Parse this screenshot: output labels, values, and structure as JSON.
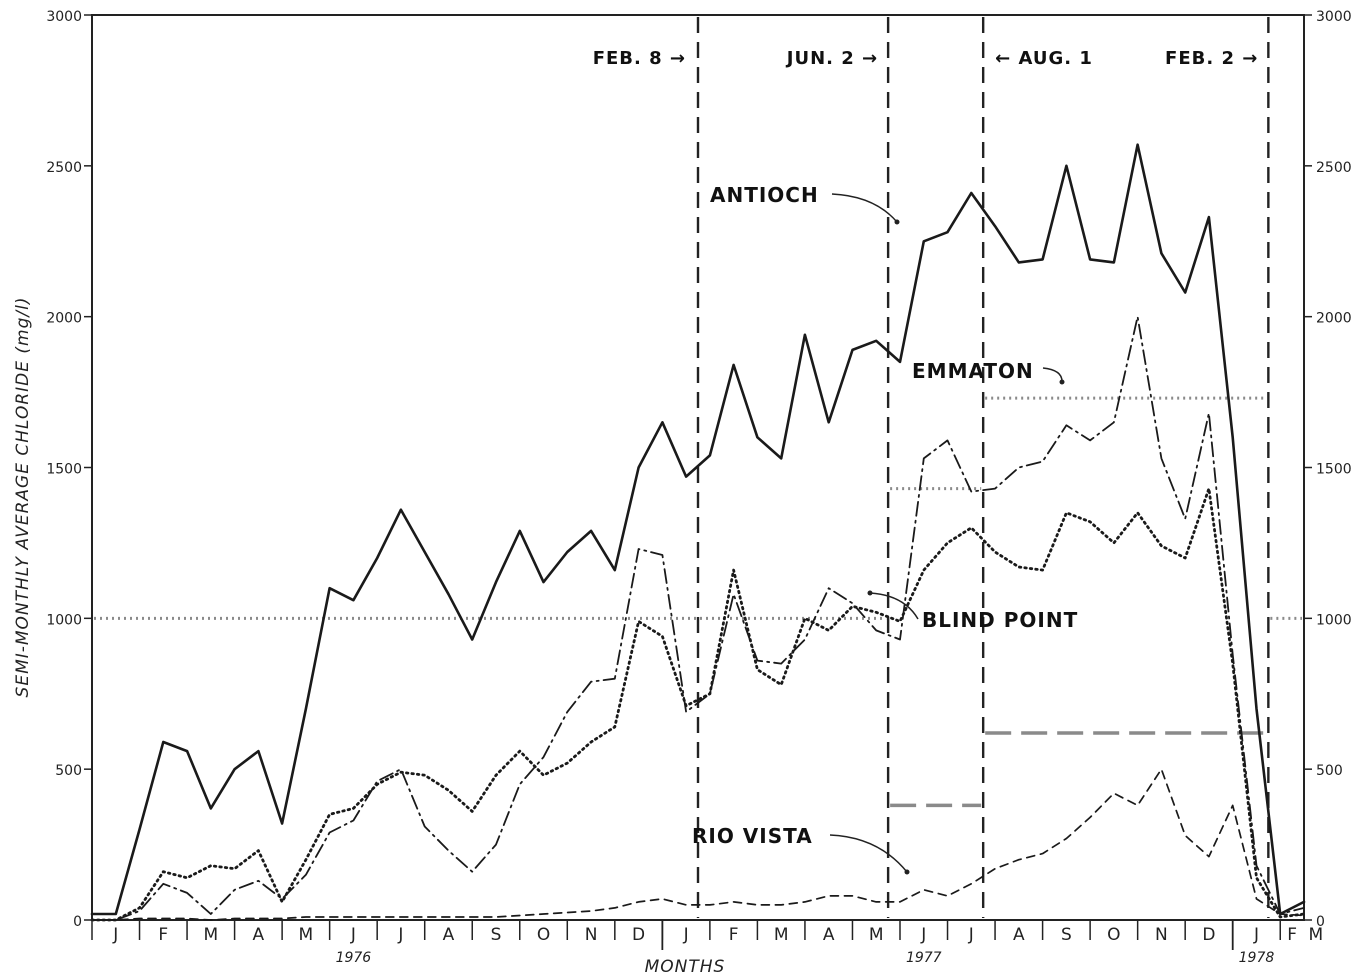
{
  "chart_data": {
    "type": "line",
    "title": "",
    "xlabel": "MONTHS",
    "ylabel": "SEMI-MONTHLY AVERAGE CHLORIDE (mg/l)",
    "ylim": [
      0,
      3000
    ],
    "yticks": [
      0,
      500,
      1000,
      1500,
      2000,
      2500,
      3000
    ],
    "x_units": "half-month periods starting January 1976",
    "xlim": [
      0,
      51
    ],
    "month_labels": [
      "J",
      "F",
      "M",
      "A",
      "M",
      "J",
      "J",
      "A",
      "S",
      "O",
      "N",
      "D",
      "J",
      "F",
      "M",
      "A",
      "M",
      "J",
      "J",
      "A",
      "S",
      "O",
      "N",
      "D",
      "J",
      "F",
      "M"
    ],
    "year_labels": [
      {
        "year": "1976",
        "at_month_index": 5.5
      },
      {
        "year": "1977",
        "at_month_index": 17.5
      },
      {
        "year": "1978",
        "at_month_index": 24.5
      }
    ],
    "grid": false,
    "legend": "none (series labeled directly)",
    "events": [
      {
        "label": "FEB. 8",
        "x": 25.5,
        "arrow": "right"
      },
      {
        "label": "JUN. 2",
        "x": 33.5,
        "arrow": "right"
      },
      {
        "label": "AUG. 1",
        "x": 37.5,
        "arrow": "left"
      },
      {
        "label": "FEB. 2",
        "x": 49.5,
        "arrow": "right"
      }
    ],
    "series": [
      {
        "name": "ANTIOCH",
        "style": "solid",
        "x": [
          0,
          1,
          2,
          3,
          4,
          5,
          6,
          7,
          8,
          9,
          10,
          11,
          12,
          13,
          14,
          15,
          16,
          17,
          18,
          19,
          20,
          21,
          22,
          23,
          24,
          25,
          26,
          27,
          28,
          29,
          30,
          31,
          32,
          33,
          34,
          35,
          36,
          37,
          38,
          39,
          40,
          41,
          42,
          43,
          44,
          45,
          46,
          47,
          48,
          49,
          50,
          51
        ],
        "values": [
          20,
          20,
          300,
          590,
          560,
          370,
          500,
          560,
          320,
          700,
          1100,
          1060,
          1200,
          1360,
          1220,
          1080,
          930,
          1120,
          1290,
          1120,
          1220,
          1290,
          1160,
          1500,
          1650,
          1470,
          1540,
          1840,
          1600,
          1530,
          1940,
          1650,
          1890,
          1920,
          1850,
          2250,
          2280,
          2410,
          2300,
          2180,
          2190,
          2500,
          2190,
          2180,
          2570,
          2210,
          2080,
          2330,
          1600,
          700,
          20,
          60
        ]
      },
      {
        "name": "EMMATON",
        "style": "dash-dot",
        "x": [
          0,
          1,
          2,
          3,
          4,
          5,
          6,
          7,
          8,
          9,
          10,
          11,
          12,
          13,
          14,
          15,
          16,
          17,
          18,
          19,
          20,
          21,
          22,
          23,
          24,
          25,
          26,
          27,
          28,
          29,
          30,
          31,
          32,
          33,
          34,
          35,
          36,
          37,
          38,
          39,
          40,
          41,
          42,
          43,
          44,
          45,
          46,
          47,
          48,
          49,
          50,
          51
        ],
        "values": [
          0,
          0,
          30,
          120,
          90,
          20,
          100,
          130,
          70,
          150,
          290,
          330,
          460,
          500,
          310,
          230,
          160,
          250,
          450,
          540,
          690,
          790,
          800,
          1230,
          1210,
          690,
          750,
          1080,
          860,
          850,
          930,
          1100,
          1050,
          960,
          930,
          1530,
          1590,
          1420,
          1430,
          1500,
          1520,
          1640,
          1590,
          1650,
          2000,
          1530,
          1330,
          1680,
          880,
          180,
          20,
          40
        ]
      },
      {
        "name": "BLIND POINT",
        "style": "dotted",
        "x": [
          0,
          1,
          2,
          3,
          4,
          5,
          6,
          7,
          8,
          9,
          10,
          11,
          12,
          13,
          14,
          15,
          16,
          17,
          18,
          19,
          20,
          21,
          22,
          23,
          24,
          25,
          26,
          27,
          28,
          29,
          30,
          31,
          32,
          33,
          34,
          35,
          36,
          37,
          38,
          39,
          40,
          41,
          42,
          43,
          44,
          45,
          46,
          47,
          48,
          49,
          50,
          51
        ],
        "values": [
          0,
          0,
          40,
          160,
          140,
          180,
          170,
          230,
          60,
          200,
          350,
          370,
          450,
          490,
          480,
          430,
          360,
          480,
          560,
          480,
          520,
          590,
          640,
          990,
          940,
          710,
          750,
          1160,
          830,
          780,
          1000,
          960,
          1040,
          1020,
          990,
          1160,
          1250,
          1300,
          1220,
          1170,
          1160,
          1350,
          1320,
          1250,
          1350,
          1240,
          1200,
          1430,
          850,
          140,
          10,
          20
        ]
      },
      {
        "name": "RIO VISTA",
        "style": "dashed",
        "x": [
          0,
          1,
          2,
          3,
          4,
          5,
          6,
          7,
          8,
          9,
          10,
          11,
          12,
          13,
          14,
          15,
          16,
          17,
          18,
          19,
          20,
          21,
          22,
          23,
          24,
          25,
          26,
          27,
          28,
          29,
          30,
          31,
          32,
          33,
          34,
          35,
          36,
          37,
          38,
          39,
          40,
          41,
          42,
          43,
          44,
          45,
          46,
          47,
          48,
          49,
          50,
          51
        ],
        "values": [
          0,
          0,
          5,
          5,
          5,
          0,
          5,
          5,
          5,
          10,
          10,
          10,
          10,
          10,
          10,
          10,
          10,
          10,
          15,
          20,
          25,
          30,
          40,
          60,
          70,
          50,
          50,
          60,
          50,
          50,
          60,
          80,
          80,
          60,
          60,
          100,
          80,
          120,
          170,
          200,
          220,
          270,
          340,
          420,
          380,
          500,
          280,
          210,
          380,
          70,
          20,
          15
        ]
      }
    ],
    "standards": [
      {
        "style": "dotted",
        "x": [
          0,
          33.5
        ],
        "value": 1000
      },
      {
        "style": "dotted",
        "x": [
          49.5,
          51
        ],
        "value": 1000
      },
      {
        "style": "dotted",
        "x": [
          33.5,
          37.5
        ],
        "value": 1430
      },
      {
        "style": "dotted",
        "x": [
          37.5,
          49.5
        ],
        "value": 1730
      },
      {
        "style": "dashed",
        "x": [
          33.5,
          37.5
        ],
        "value": 380
      },
      {
        "style": "dashed",
        "x": [
          37.5,
          49.5
        ],
        "value": 620
      }
    ]
  }
}
